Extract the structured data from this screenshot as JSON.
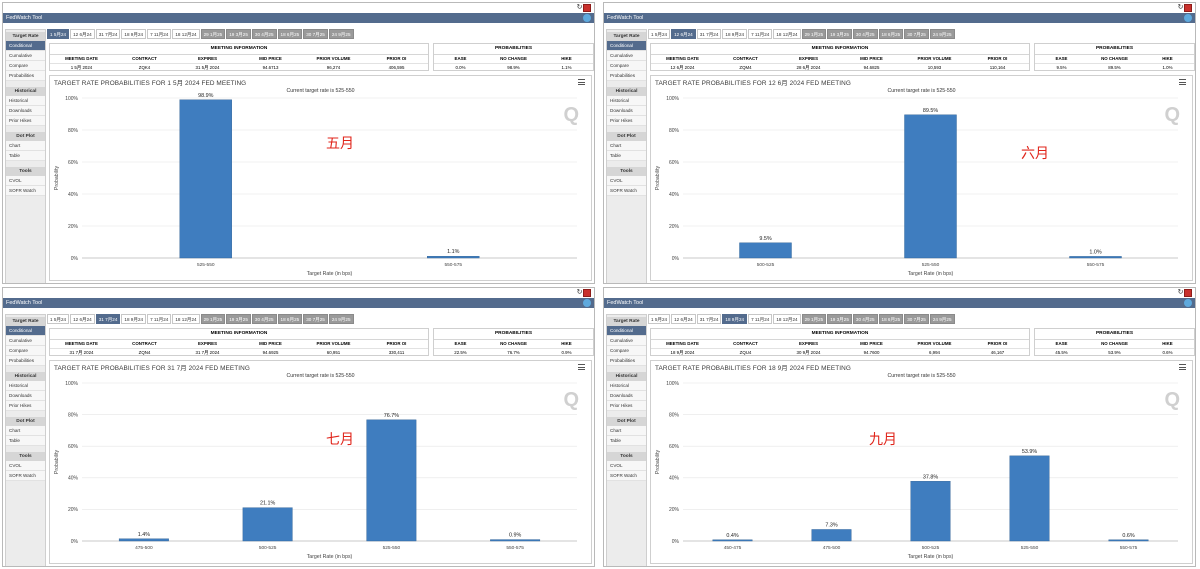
{
  "app_title": "FedWatch Tool",
  "tabs": [
    "1 5月24",
    "12 6月24",
    "31 7月24",
    "18 9月24",
    "7 11月24",
    "18 12月24",
    "29 1月25",
    "19 3月25",
    "30 4月25",
    "18 6月25",
    "30 7月25",
    "24 9月25"
  ],
  "sidebar": {
    "target_rate": {
      "header": "Target Rate",
      "items": [
        "Conditional",
        "Cumulative",
        "Compare",
        "Probabilities"
      ]
    },
    "historical": {
      "header": "Historical",
      "items": [
        "Historical",
        "Downloads",
        "Prior Hikes"
      ]
    },
    "dot_plot": {
      "header": "Dot Plot",
      "items": [
        "Chart",
        "Table"
      ]
    },
    "tools": {
      "header": "Tools",
      "items": [
        "CVOL",
        "SOFR Watch"
      ]
    }
  },
  "meeting_info_header": "MEETING INFORMATION",
  "meeting_cols": [
    "MEETING DATE",
    "CONTRACT",
    "EXPIRES",
    "MID PRICE",
    "PRIOR VOLUME",
    "PRIOR OI"
  ],
  "prob_header": "PROBABILITIES",
  "prob_cols": [
    "EASE",
    "NO CHANGE",
    "HIKE"
  ],
  "current_rate_text": "Current target rate is 525-550",
  "xlabel": "Target Rate (in bps)",
  "ylabel": "Probability",
  "yticks": [
    "0%",
    "20%",
    "40%",
    "60%",
    "80%",
    "100%"
  ],
  "watermark": "Q",
  "panels": [
    {
      "active_tab": 0,
      "title": "TARGET RATE PROBABILITIES FOR 1 5月 2024 FED MEETING",
      "meeting": [
        "1 5月 2024",
        "ZQK4",
        "31 5月 2024",
        "94.6713",
        "96,274",
        "406,595"
      ],
      "probs": [
        "0.0%",
        "98.9%",
        "1.1%"
      ],
      "annotation": "五月",
      "chart_data": {
        "type": "bar",
        "categories": [
          "525-550",
          "550-575"
        ],
        "values": [
          98.9,
          1.1
        ],
        "labels": [
          "98.9%",
          "1.1%"
        ],
        "ylim": [
          0,
          100
        ],
        "xlabel": "Target Rate (in bps)",
        "ylabel": "Probability"
      }
    },
    {
      "active_tab": 1,
      "title": "TARGET RATE PROBABILITIES FOR 12 6月 2024 FED MEETING",
      "meeting": [
        "12 6月 2024",
        "ZQM4",
        "28 6月 2024",
        "94.6825",
        "10,593",
        "110,164"
      ],
      "probs": [
        "9.5%",
        "89.5%",
        "1.0%"
      ],
      "annotation": "六月",
      "chart_data": {
        "type": "bar",
        "categories": [
          "500-525",
          "525-550",
          "550-575"
        ],
        "values": [
          9.5,
          89.5,
          1.0
        ],
        "labels": [
          "9.5%",
          "89.5%",
          "1.0%"
        ],
        "ylim": [
          0,
          100
        ],
        "xlabel": "Target Rate (in bps)",
        "ylabel": "Probability"
      }
    },
    {
      "active_tab": 2,
      "title": "TARGET RATE PROBABILITIES FOR 31 7月 2024 FED MEETING",
      "meeting": [
        "31 7月 2024",
        "ZQN4",
        "31 7月 2024",
        "94.6925",
        "60,951",
        "330,411"
      ],
      "probs": [
        "22.5%",
        "76.7%",
        "0.9%"
      ],
      "annotation": "七月",
      "chart_data": {
        "type": "bar",
        "categories": [
          "475-500",
          "500-525",
          "525-550",
          "550-575"
        ],
        "values": [
          1.4,
          21.1,
          76.7,
          0.9
        ],
        "labels": [
          "1.4%",
          "21.1%",
          "76.7%",
          "0.9%"
        ],
        "ylim": [
          0,
          100
        ],
        "xlabel": "Target Rate (in bps)",
        "ylabel": "Probability"
      }
    },
    {
      "active_tab": 3,
      "title": "TARGET RATE PROBABILITIES FOR 18 9月 2024 FED MEETING",
      "meeting": [
        "18 9月 2024",
        "ZQU4",
        "30 9月 2024",
        "94.7600",
        "6,994",
        "46,167"
      ],
      "probs": [
        "45.5%",
        "53.9%",
        "0.6%"
      ],
      "annotation": "九月",
      "chart_data": {
        "type": "bar",
        "categories": [
          "450-475",
          "475-500",
          "500-525",
          "525-550",
          "550-575"
        ],
        "values": [
          0.4,
          7.3,
          37.8,
          53.9,
          0.6
        ],
        "labels": [
          "0.4%",
          "7.3%",
          "37.8%",
          "53.9%",
          "0.6%"
        ],
        "ylim": [
          0,
          100
        ],
        "xlabel": "Target Rate (in bps)",
        "ylabel": "Probability"
      }
    }
  ],
  "colors": {
    "bar": "#3f7dbf",
    "bar_edge": "#2d5f93",
    "titlebar": "#536b8d",
    "annotation": "#e0251b"
  }
}
